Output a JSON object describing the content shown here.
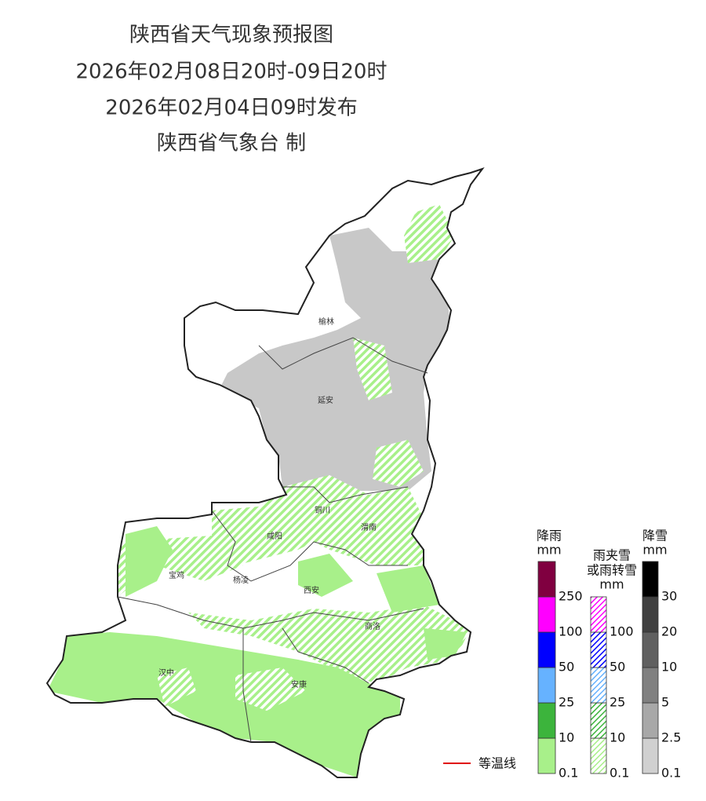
{
  "header": {
    "title": "陕西省天气现象预报图",
    "period": "2026年02月08日20时-09日20时",
    "issued": "2026年02月04日09时发布",
    "publisher": "陕西省气象台 制"
  },
  "map": {
    "cities": [
      "榆林",
      "延安",
      "铜川",
      "渭南",
      "咸阳",
      "宝鸡",
      "杨凌",
      "西安",
      "商洛",
      "汉中",
      "安康"
    ]
  },
  "legend": {
    "isotherm": "等温线",
    "rain": {
      "title": "降雨",
      "unit": "mm",
      "ticks": [
        0.1,
        10,
        25,
        50,
        100,
        250
      ],
      "colors": [
        "#a8f08a",
        "#3cb43c",
        "#66b2ff",
        "#0000ff",
        "#ff00ff",
        "#800040"
      ]
    },
    "sleet": {
      "title": "雨夹雪",
      "title2": "或雨转雪",
      "unit": "mm",
      "ticks": [
        0.1,
        10,
        25,
        50,
        100
      ],
      "colors": [
        "#a8f08a",
        "#3cb43c",
        "#66b2ff",
        "#0000ff",
        "#ff00ff"
      ]
    },
    "snow": {
      "title": "降雪",
      "unit": "mm",
      "ticks": [
        0.1,
        2.5,
        5,
        10,
        20,
        30
      ],
      "colors": [
        "#d0d0d0",
        "#a8a8a8",
        "#808080",
        "#606060",
        "#404040",
        "#000000"
      ]
    }
  }
}
